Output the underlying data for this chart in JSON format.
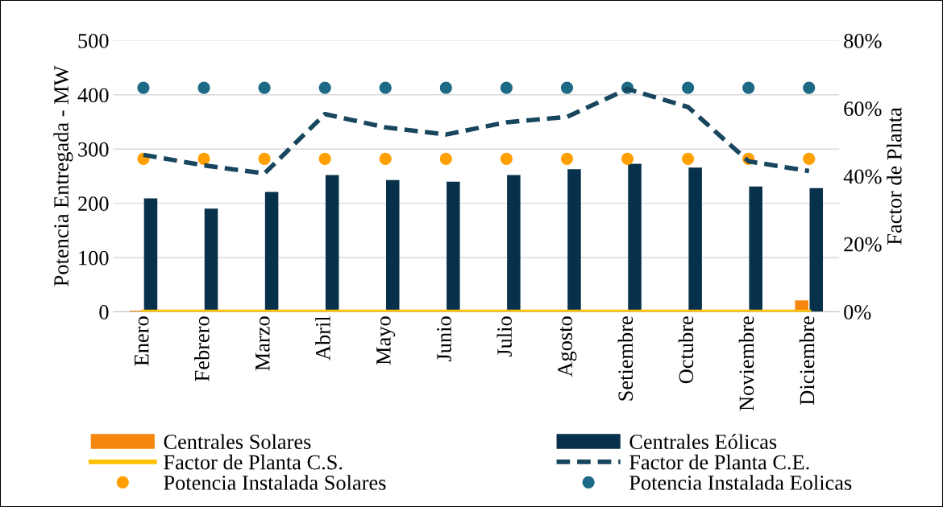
{
  "chart_data": {
    "type": "bar",
    "categories": [
      "Enero",
      "Febrero",
      "Marzo",
      "Abril",
      "Mayo",
      "Junio",
      "Julio",
      "Agosto",
      "Setiembre",
      "Octubre",
      "Noviembre",
      "Diciembre"
    ],
    "ylabel": "Potencia Entregada - MW",
    "y2label": "Factor de Planta",
    "ylim": [
      0,
      500
    ],
    "yticks": [
      0,
      100,
      200,
      300,
      400,
      500
    ],
    "y2lim": [
      0,
      80
    ],
    "y2ticks": [
      {
        "value": 0,
        "label": "0%"
      },
      {
        "value": 20,
        "label": "20%"
      },
      {
        "value": 40,
        "label": "40%"
      },
      {
        "value": 60,
        "label": "60%"
      },
      {
        "value": 80,
        "label": "80%"
      }
    ],
    "grid": "y",
    "legend": "bottom",
    "series": [
      {
        "name": "Centrales Solares",
        "color": "#f7860f",
        "values": [
          2,
          0,
          0,
          0,
          0,
          0,
          0,
          0,
          0,
          0,
          0,
          21
        ]
      },
      {
        "name": "Centrales Eólicas",
        "color": "#07304a",
        "values": [
          209,
          190,
          221,
          252,
          243,
          240,
          252,
          263,
          273,
          266,
          231,
          228
        ]
      },
      {
        "name": "Factor de Planta C.S.",
        "type": "line",
        "axis": "y2",
        "color": "#ffc000",
        "line_style": "solid",
        "values": [
          0,
          0,
          0,
          0,
          0,
          0,
          0,
          0,
          0,
          0,
          0,
          0
        ]
      },
      {
        "name": "Factor de Planta C.E.",
        "type": "line",
        "axis": "y2",
        "color": "#17465e",
        "line_style": "dashed",
        "values": [
          46.3,
          43.2,
          40.8,
          58.3,
          54.4,
          52.3,
          55.9,
          57.5,
          65.7,
          60.4,
          44.4,
          41.5
        ]
      },
      {
        "name": "Potencia Instalada Solares",
        "type": "scatter",
        "color": "#ffa000",
        "marker": "circle",
        "values": [
          282,
          282,
          282,
          282,
          282,
          282,
          282,
          282,
          282,
          282,
          282,
          282
        ]
      },
      {
        "name": "Potencia Instalada Eolicas",
        "type": "scatter",
        "color": "#1d6a86",
        "marker": "circle",
        "values": [
          413,
          413,
          413,
          413,
          413,
          413,
          413,
          413,
          413,
          413,
          413,
          413
        ]
      }
    ]
  }
}
